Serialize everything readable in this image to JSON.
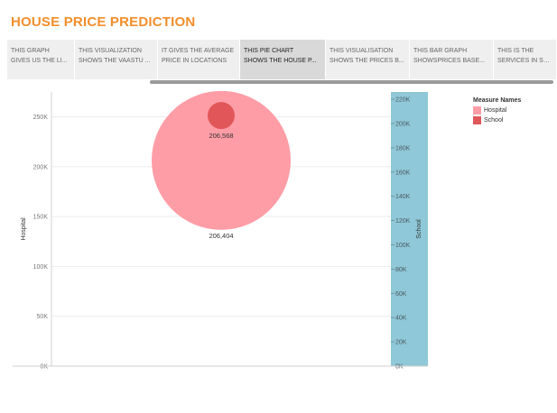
{
  "dashboard_title": "HOUSE PRICE PREDICTION",
  "story_tabs": [
    {
      "line1": "THIS GRAPH",
      "line2": "GIVES US THE LI..."
    },
    {
      "line1": "THIS VISUALIZATION",
      "line2": "SHOWS THE VAASTU ..."
    },
    {
      "line1": "IT GIVES THE AVERAGE",
      "line2": "PRICE IN LOCATIONS"
    },
    {
      "line1": "THIS PIE CHART",
      "line2": "SHOWS THE HOUSE P..."
    },
    {
      "line1": "THIS VISUALISATION",
      "line2": "SHOWS THE PRICES B..."
    },
    {
      "line1": "THIS BAR GRAPH",
      "line2": "SHOWSPRICES BASE..."
    },
    {
      "line1": "THIS IS THE",
      "line2": "SERVICES IN SOME"
    }
  ],
  "active_tab": 3,
  "colors": {
    "title": "#f28e2b",
    "hospital": "#ff9da7",
    "school": "#e15759",
    "school_axis_band": "#8fc8d8"
  },
  "legend": {
    "title": "Measure Names",
    "items": [
      {
        "label": "Hospital",
        "color": "#ff9da7"
      },
      {
        "label": "School",
        "color": "#e15759"
      }
    ]
  },
  "chart_data": {
    "type": "scatter",
    "left_axis": {
      "label": "Hospital",
      "ticks": [
        "0K",
        "50K",
        "100K",
        "150K",
        "200K",
        "250K"
      ],
      "range": [
        0,
        275000
      ]
    },
    "right_axis": {
      "label": "School",
      "ticks": [
        "0K",
        "20K",
        "40K",
        "60K",
        "80K",
        "100K",
        "120K",
        "140K",
        "160K",
        "180K",
        "200K",
        "220K"
      ],
      "range": [
        0,
        226000
      ]
    },
    "marks": [
      {
        "series": "Hospital",
        "value": 206404,
        "label": "206,404"
      },
      {
        "series": "School",
        "value": 206568,
        "label": "206,568"
      }
    ]
  }
}
